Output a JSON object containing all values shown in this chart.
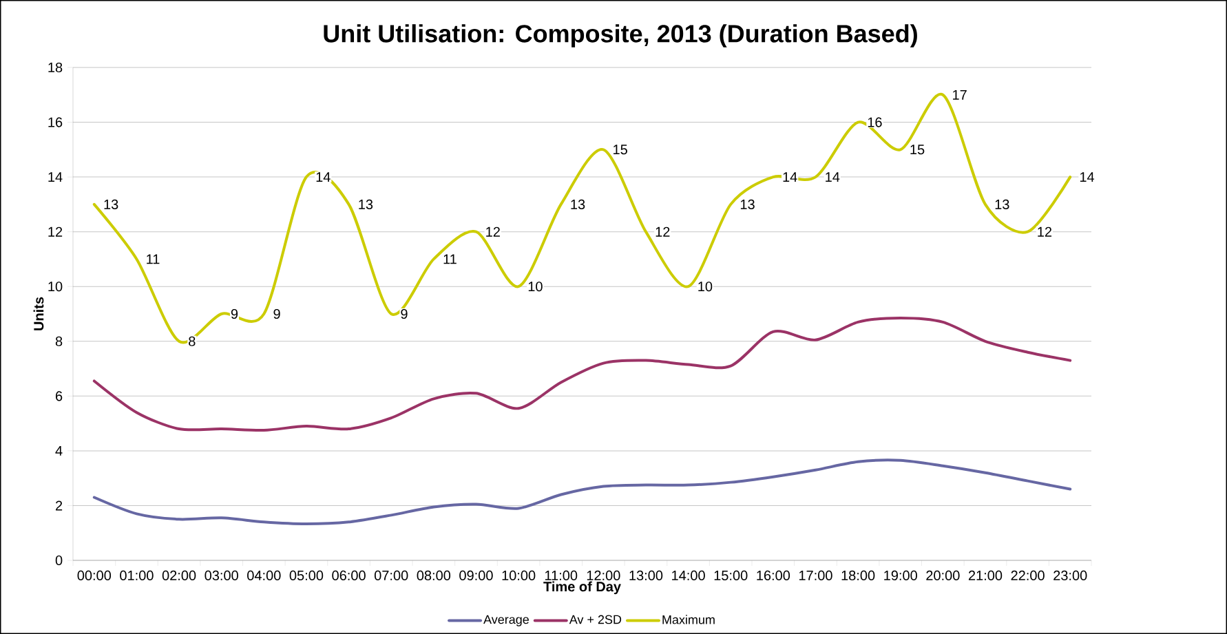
{
  "chart_data": {
    "type": "line",
    "title": "Unit Utilisation: Composite, 2013 (Duration Based)",
    "xlabel": "Time of Day",
    "ylabel": "Units",
    "categories": [
      "00:00",
      "01:00",
      "02:00",
      "03:00",
      "04:00",
      "05:00",
      "06:00",
      "07:00",
      "08:00",
      "09:00",
      "10:00",
      "11:00",
      "12:00",
      "13:00",
      "14:00",
      "15:00",
      "16:00",
      "17:00",
      "18:00",
      "19:00",
      "20:00",
      "21:00",
      "22:00",
      "23:00"
    ],
    "series": [
      {
        "name": "Average",
        "color": "#6667a3",
        "values": [
          2.3,
          1.7,
          1.5,
          1.55,
          1.4,
          1.33,
          1.4,
          1.65,
          1.95,
          2.05,
          1.9,
          2.4,
          2.7,
          2.75,
          2.75,
          2.85,
          3.05,
          3.3,
          3.6,
          3.65,
          3.45,
          3.2,
          2.9,
          2.6
        ]
      },
      {
        "name": "Av + 2SD",
        "color": "#9b3366",
        "values": [
          6.55,
          5.4,
          4.8,
          4.8,
          4.75,
          4.9,
          4.8,
          5.2,
          5.9,
          6.1,
          5.55,
          6.5,
          7.2,
          7.3,
          7.15,
          7.1,
          8.35,
          8.05,
          8.7,
          8.85,
          8.7,
          8.0,
          7.6,
          7.3
        ]
      },
      {
        "name": "Maximum",
        "color": "#cccc00",
        "values": [
          13,
          11,
          8,
          9,
          9,
          14,
          13,
          9,
          11,
          12,
          10,
          13,
          15,
          12,
          10,
          13,
          14,
          14,
          16,
          15,
          17,
          13,
          12,
          14
        ],
        "value_labels": [
          "13",
          "11",
          "8",
          "9",
          "9",
          "14",
          "13",
          "9",
          "11",
          "12",
          "10",
          "13",
          "15",
          "12",
          "10",
          "13",
          "14",
          "14",
          "16",
          "15",
          "17",
          "13",
          "12",
          "14"
        ]
      }
    ],
    "ylim": [
      0,
      18
    ],
    "yticks": [
      0,
      2,
      4,
      6,
      8,
      10,
      12,
      14,
      16,
      18
    ],
    "grid": "y",
    "legend": "bottom",
    "marker": "none",
    "line_style": "solid"
  }
}
